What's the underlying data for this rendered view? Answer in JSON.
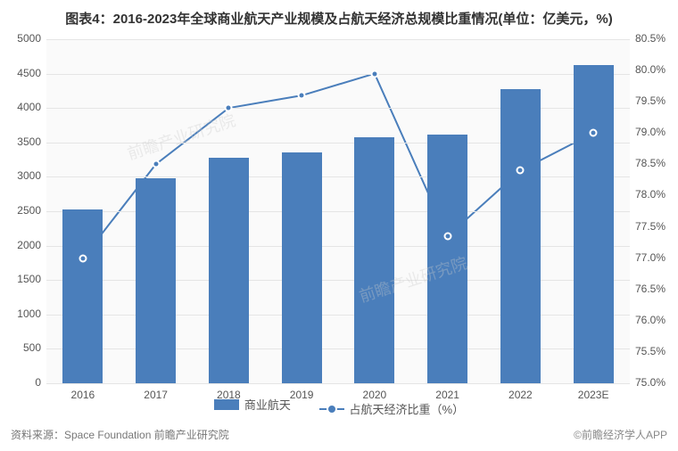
{
  "title": "图表4：2016-2023年全球商业航天产业规模及占航天经济总规模比重情况(单位：亿美元，%)",
  "title_fontsize": 15,
  "title_color": "#333333",
  "chart": {
    "type": "bar+line",
    "background_color": "#fafafa",
    "grid_color": "#e5e5e5",
    "categories": [
      "2016",
      "2017",
      "2018",
      "2019",
      "2020",
      "2021",
      "2022",
      "2023E"
    ],
    "bar": {
      "label": "商业航天",
      "values": [
        2530,
        2980,
        3280,
        3360,
        3570,
        3620,
        4280,
        4630
      ],
      "color": "#4a7ebb",
      "width_ratio": 0.55
    },
    "line": {
      "label": "占航天经济比重（%）",
      "values": [
        77.0,
        78.5,
        79.4,
        79.6,
        79.95,
        77.35,
        78.4,
        79.0
      ],
      "color": "#4a7ebb",
      "line_width": 2,
      "marker_size": 9,
      "marker_fill": "#4a7ebb",
      "marker_border": "#ffffff",
      "marker_border_width": 2
    },
    "y_left": {
      "min": 0,
      "max": 5000,
      "step": 500,
      "label_fontsize": 12,
      "label_color": "#555555"
    },
    "y_right": {
      "min": 75.0,
      "max": 80.5,
      "step": 0.5,
      "suffix": "%",
      "decimals": 1,
      "label_fontsize": 12,
      "label_color": "#555555"
    },
    "x_label_fontsize": 12,
    "x_label_color": "#555555"
  },
  "legend": {
    "items": [
      {
        "type": "bar",
        "label": "商业航天",
        "color": "#4a7ebb"
      },
      {
        "type": "line",
        "label": "占航天经济比重（%）",
        "color": "#4a7ebb"
      }
    ],
    "fontsize": 13,
    "color": "#555555"
  },
  "source": "资料来源：Space Foundation 前瞻产业研究院",
  "copyright": "©前瞻经济学人APP",
  "watermark": "前瞻产业研究院"
}
